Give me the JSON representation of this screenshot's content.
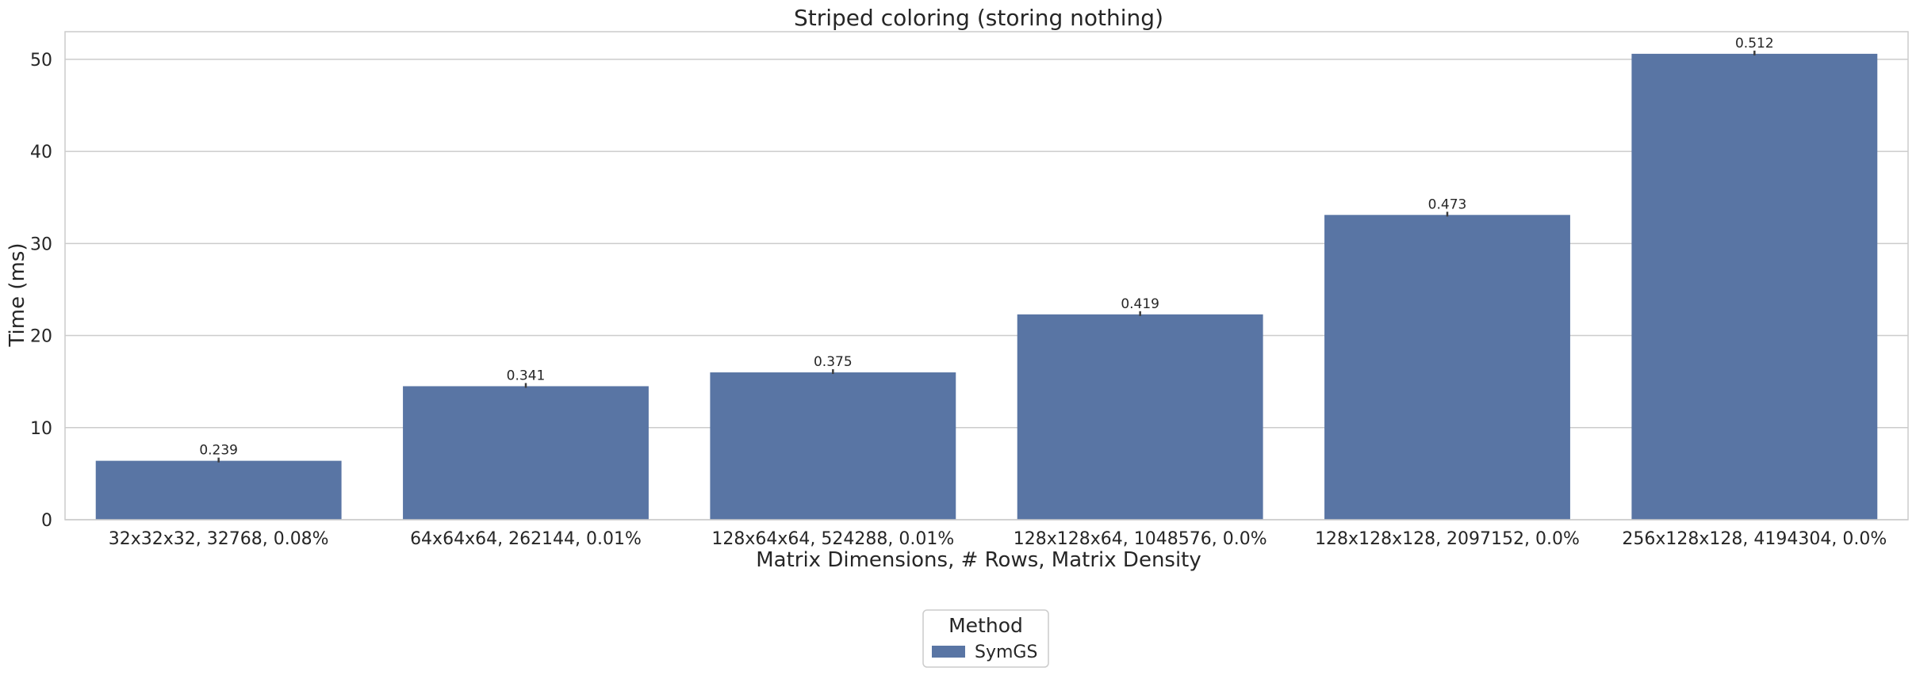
{
  "chart_data": {
    "type": "bar",
    "title": "Striped coloring (storing nothing)",
    "xlabel": "Matrix Dimensions, # Rows, Matrix Density",
    "ylabel": "Time (ms)",
    "ylim": [
      0,
      53
    ],
    "yticks": [
      0,
      10,
      20,
      30,
      40,
      50
    ],
    "grid": true,
    "categories": [
      "32x32x32, 32768, 0.08%",
      "64x64x64, 262144, 0.01%",
      "128x64x64, 524288, 0.01%",
      "128x128x64, 1048576, 0.0%",
      "128x128x128, 2097152, 0.0%",
      "256x128x128, 4194304, 0.0%"
    ],
    "series": [
      {
        "name": "SymGS",
        "color": "#5975a4",
        "values": [
          6.4,
          14.5,
          16.0,
          22.3,
          33.1,
          50.6
        ],
        "data_labels": [
          "0.239",
          "0.341",
          "0.375",
          "0.419",
          "0.473",
          "0.512"
        ]
      }
    ],
    "legend": {
      "title": "Method",
      "placement": "bottom-center"
    }
  }
}
